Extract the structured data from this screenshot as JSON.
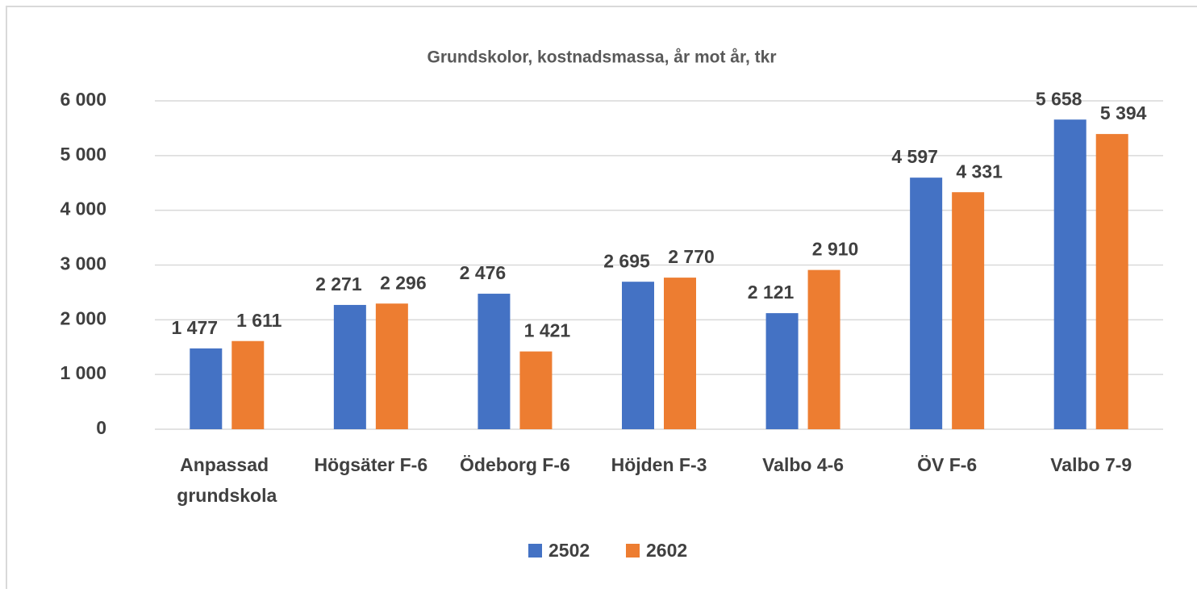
{
  "chart_data": {
    "type": "bar",
    "title": "Grundskolor,  kostnadsmassa, år mot år, tkr",
    "categories": [
      "Anpassad grundskola",
      "Högsäter F-6",
      "Ödeborg F-6",
      "Höjden F-3",
      "Valbo 4-6",
      "ÖV F-6",
      "Valbo 7-9"
    ],
    "series": [
      {
        "name": "2502",
        "color": "#4472c4",
        "values": [
          1477,
          2271,
          2476,
          2695,
          2121,
          4597,
          5658
        ],
        "value_labels": [
          "1 477",
          "2 271",
          "2 476",
          "2 695",
          "2 121",
          "4 597",
          "5 658"
        ]
      },
      {
        "name": "2602",
        "color": "#ed7d31",
        "values": [
          1611,
          2296,
          1421,
          2770,
          2910,
          4331,
          5394
        ],
        "value_labels": [
          "1 611",
          "2 296",
          "1 421",
          "2 770",
          "2 910",
          "4 331",
          "5 394"
        ]
      }
    ],
    "ylim": [
      0,
      6000
    ],
    "yticks": [
      0,
      {
        "value": 1000,
        "label": "1 000"
      },
      {
        "value": 2000,
        "label": "2 000"
      },
      {
        "value": 3000,
        "label": "3 000"
      },
      {
        "value": 4000,
        "label": "4 000"
      },
      {
        "value": 5000,
        "label": "5 000"
      },
      {
        "value": 6000,
        "label": "6 000"
      }
    ],
    "grid": true,
    "legend": "bottom"
  }
}
